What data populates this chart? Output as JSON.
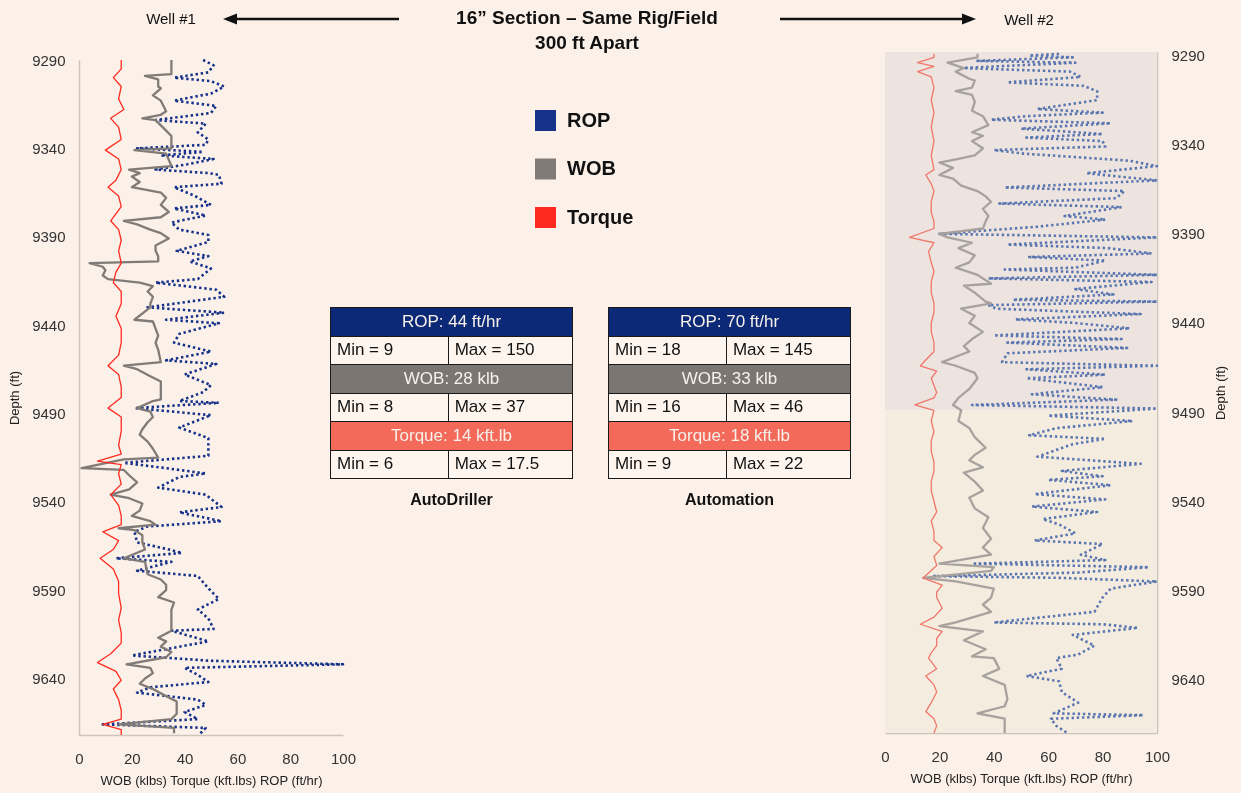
{
  "chart_data": [
    {
      "type": "line",
      "title": "Well #1",
      "xlabel": "WOB (klbs) Torque (kft.lbs) ROP (ft/hr)",
      "ylabel": "Depth (ft)",
      "xlim": [
        0,
        100
      ],
      "xticks": [
        0,
        20,
        40,
        60,
        80,
        100
      ],
      "ylim": [
        9672,
        9290
      ],
      "yticks": [
        9290,
        9340,
        9390,
        9440,
        9490,
        9540,
        9590,
        9640
      ],
      "legend": "right",
      "series": [
        {
          "name": "ROP",
          "color": "#15318a",
          "line_style": "dotted",
          "x": [
            47,
            51,
            49,
            36,
            50,
            55,
            50,
            36,
            52,
            50,
            29,
            48,
            45,
            49,
            48,
            22,
            47,
            31,
            51,
            41,
            29,
            49,
            53,
            54,
            36,
            44,
            50,
            36,
            48,
            35,
            38,
            49,
            49,
            37,
            49,
            42,
            50,
            45,
            29,
            52,
            55,
            26,
            55,
            33,
            53,
            38,
            36,
            50,
            33,
            52,
            40,
            50,
            47,
            38,
            53,
            21,
            50,
            38,
            49,
            49,
            17,
            33,
            48,
            38,
            30,
            48,
            54,
            38,
            54,
            26,
            21,
            22,
            34,
            39,
            14,
            35,
            22,
            45,
            49,
            53,
            45,
            49,
            51,
            35,
            49,
            20,
            50,
            100,
            40,
            45,
            49,
            27,
            22,
            45,
            48,
            40,
            45,
            9,
            48,
            46
          ],
          "values": [
            9290,
            9293,
            9297,
            9300,
            9302,
            9305,
            9309,
            9313,
            9316,
            9320,
            9324,
            9326,
            9331,
            9335,
            9338,
            9340,
            9342,
            9344,
            9346,
            9349,
            9352,
            9354,
            9355,
            9360,
            9362,
            9367,
            9372,
            9374,
            9378,
            9382,
            9386,
            9389,
            9393,
            9398,
            9401,
            9404,
            9408,
            9414,
            9416,
            9420,
            9424,
            9430,
            9433,
            9437,
            9439,
            9445,
            9450,
            9455,
            9460,
            9462,
            9468,
            9474,
            9478,
            9483,
            9484,
            9487,
            9491,
            9498,
            9504,
            9514,
            9518,
            9521,
            9524,
            9526,
            9532,
            9536,
            9543,
            9546,
            9551,
            9554,
            9557,
            9563,
            9567,
            9569,
            9572,
            9574,
            9579,
            9582,
            9589,
            9595,
            9601,
            9606,
            9612,
            9613,
            9619,
            9627,
            9630,
            9632,
            9634,
            9638,
            9642,
            9645,
            9648,
            9652,
            9655,
            9659,
            9663,
            9666,
            9668,
            9671
          ]
        },
        {
          "name": "WOB",
          "color": "#807b76",
          "line_style": "solid",
          "x": [
            35,
            35,
            25,
            30,
            30,
            31,
            28,
            31,
            32,
            33,
            31,
            24,
            29,
            31,
            33,
            35,
            35,
            21,
            33,
            35,
            19,
            23,
            20,
            23,
            20,
            31,
            33,
            31,
            34,
            31,
            17,
            22,
            27,
            31,
            34,
            29,
            29,
            30,
            30,
            4,
            9,
            10,
            9,
            11,
            23,
            28,
            26,
            28,
            27,
            27,
            21,
            28,
            29,
            30,
            29,
            30,
            31,
            17,
            22,
            27,
            31,
            31,
            31,
            28,
            22,
            27,
            28,
            26,
            24,
            23,
            26,
            28,
            30,
            17,
            1,
            17,
            19,
            22,
            19,
            12,
            19,
            24,
            23,
            20,
            27,
            29,
            15,
            21,
            24,
            24,
            25,
            17,
            25,
            26,
            31,
            33,
            33,
            30,
            36,
            35,
            35,
            35,
            35,
            30,
            33,
            31,
            35,
            33,
            18,
            27,
            28,
            25,
            23,
            28,
            33,
            37,
            37,
            37,
            35,
            15,
            36,
            36
          ],
          "values": [
            9290,
            9298,
            9299,
            9301,
            9305,
            9306,
            9310,
            9313,
            9316,
            9319,
            9321,
            9323,
            9324,
            9327,
            9330,
            9333,
            9340,
            9341,
            9343,
            9350,
            9352,
            9354,
            9356,
            9359,
            9362,
            9365,
            9368,
            9372,
            9376,
            9379,
            9381,
            9383,
            9386,
            9388,
            9391,
            9395,
            9398,
            9401,
            9404,
            9405,
            9407,
            9409,
            9412,
            9414,
            9416,
            9418,
            9421,
            9424,
            9428,
            9430,
            9437,
            9438,
            9442,
            9446,
            9450,
            9454,
            9461,
            9463,
            9465,
            9469,
            9472,
            9476,
            9482,
            9483,
            9487,
            9489,
            9492,
            9495,
            9499,
            9502,
            9506,
            9510,
            9515,
            9516,
            9521,
            9522,
            9525,
            9529,
            9533,
            9536,
            9538,
            9541,
            9545,
            9548,
            9551,
            9553,
            9555,
            9556,
            9559,
            9563,
            9567,
            9572,
            9574,
            9581,
            9584,
            9587,
            9590,
            9594,
            9597,
            9601,
            9606,
            9611,
            9613,
            9617,
            9619,
            9622,
            9625,
            9628,
            9632,
            9634,
            9637,
            9640,
            9643,
            9646,
            9650,
            9653,
            9657,
            9660,
            9663,
            9666,
            9668,
            9671
          ]
        },
        {
          "name": "Torque",
          "color": "#ff2a1f",
          "line_style": "solid",
          "x": [
            16,
            16,
            13,
            16,
            15,
            17,
            12,
            15,
            16,
            10,
            15,
            16,
            14,
            11,
            15,
            16,
            12,
            15,
            16,
            15,
            16,
            14,
            13,
            16,
            16,
            14,
            16,
            16,
            15,
            11,
            15,
            16,
            16,
            11,
            16,
            16,
            15,
            16,
            7,
            16,
            15,
            16,
            12,
            15,
            16,
            16,
            9,
            15,
            13,
            8,
            13,
            15,
            15,
            16,
            15,
            16,
            16,
            12,
            7,
            14,
            16,
            13,
            15,
            16,
            16,
            9,
            16,
            16
          ],
          "values": [
            9290,
            9295,
            9300,
            9305,
            9312,
            9318,
            9323,
            9328,
            9335,
            9341,
            9346,
            9352,
            9358,
            9362,
            9367,
            9373,
            9381,
            9386,
            9392,
            9398,
            9405,
            9410,
            9416,
            9421,
            9428,
            9435,
            9442,
            9450,
            9457,
            9463,
            9468,
            9475,
            9481,
            9487,
            9492,
            9500,
            9508,
            9513,
            9517,
            9519,
            9524,
            9530,
            9536,
            9542,
            9548,
            9553,
            9557,
            9562,
            9567,
            9572,
            9578,
            9585,
            9592,
            9600,
            9607,
            9614,
            9620,
            9626,
            9631,
            9636,
            9641,
            9646,
            9652,
            9658,
            9663,
            9666,
            9669,
            9672
          ]
        }
      ]
    },
    {
      "type": "other",
      "title": "16” Section – Same Rig/Field",
      "subtitle": "300 ft Apart",
      "annotations": [
        "ROP: 44 ft/hr",
        "Min = 9",
        "Max = 150",
        "WOB: 28 klb",
        "Min = 8",
        "Max = 37",
        "Torque: 14 kft.lb",
        "Min = 6",
        "Max = 17.5",
        "AutoDriller",
        "ROP: 70 ft/hr",
        "Min = 18",
        "Max = 145",
        "WOB: 33 klb",
        "Min = 16",
        "Max = 46",
        "Torque: 18 kft.lb",
        "Min = 9",
        "Max = 22",
        "Automation"
      ]
    },
    {
      "type": "line",
      "title": "Well #2",
      "xlabel": "WOB (klbs) Torque (kft.lbs) ROP (ft/hr)",
      "y2label": "Depth (ft)",
      "xlim": [
        0,
        100
      ],
      "xticks": [
        0,
        20,
        40,
        60,
        80,
        100
      ],
      "y2lim": [
        9670,
        9288
      ],
      "y2ticks": [
        9290,
        9340,
        9390,
        9440,
        9490,
        9540,
        9590,
        9640
      ],
      "bands": [
        {
          "axis": "y2",
          "from": 9288,
          "to": 9489,
          "color": "#ede4df"
        },
        {
          "axis": "y2",
          "from": 9489,
          "to": 9670,
          "color": "#f5ece0"
        }
      ],
      "series": [
        {
          "color": "#5a76b0",
          "line_style": "dotted",
          "axis": "y2",
          "x": [
            64,
            53,
            69,
            34,
            70,
            28,
            68,
            72,
            45,
            73,
            78,
            78,
            56,
            80,
            52,
            39,
            83,
            50,
            80,
            52,
            80,
            81,
            40,
            51,
            90,
            100,
            74,
            100,
            44,
            88,
            85,
            42,
            87,
            66,
            81,
            56,
            20,
            100,
            45,
            82,
            98,
            53,
            81,
            70,
            44,
            100,
            38,
            98,
            70,
            84,
            47,
            100,
            38,
            41,
            94,
            48,
            70,
            90,
            40,
            87,
            45,
            89,
            45,
            43,
            100,
            52,
            81,
            52,
            80,
            54,
            85,
            32,
            100,
            60,
            91,
            63,
            53,
            81,
            69,
            56,
            94,
            65,
            80,
            60,
            83,
            66,
            55,
            81,
            54,
            78,
            58,
            64,
            70,
            55,
            80,
            72,
            81,
            33,
            97,
            71,
            18,
            65,
            100,
            83,
            80,
            77,
            40,
            80,
            93,
            69,
            77,
            71,
            63,
            65,
            52,
            64,
            65,
            71,
            62,
            95,
            61,
            63,
            67
          ],
          "values": [
            9289,
            9290,
            9291,
            9293,
            9294,
            9297,
            9299,
            9302,
            9305,
            9307,
            9310,
            9315,
            9320,
            9322,
            9324,
            9326,
            9328,
            9331,
            9334,
            9336,
            9338,
            9341,
            9343,
            9345,
            9349,
            9352,
            9356,
            9360,
            9364,
            9366,
            9370,
            9373,
            9375,
            9380,
            9382,
            9386,
            9390,
            9392,
            9396,
            9398,
            9401,
            9403,
            9405,
            9409,
            9410,
            9413,
            9415,
            9417,
            9421,
            9424,
            9427,
            9428,
            9430,
            9432,
            9435,
            9438,
            9440,
            9443,
            9447,
            9449,
            9451,
            9454,
            9457,
            9462,
            9464,
            9466,
            9469,
            9471,
            9476,
            9480,
            9483,
            9486,
            9488,
            9492,
            9495,
            9499,
            9503,
            9505,
            9508,
            9515,
            9519,
            9523,
            9526,
            9528,
            9531,
            9534,
            9536,
            9539,
            9543,
            9546,
            9550,
            9553,
            9558,
            9562,
            9564,
            9570,
            9573,
            9575,
            9577,
            9580,
            9582,
            9583,
            9585,
            9589,
            9594,
            9602,
            9608,
            9609,
            9611,
            9615,
            9621,
            9626,
            9628,
            9634,
            9638,
            9641,
            9647,
            9653,
            9659,
            9660,
            9662,
            9666,
            9670
          ]
        },
        {
          "color": "#a7a29d",
          "line_style": "solid",
          "axis": "y2",
          "x": [
            34,
            34,
            23,
            29,
            26,
            31,
            33,
            32,
            26,
            32,
            33,
            32,
            36,
            38,
            32,
            36,
            32,
            36,
            33,
            27,
            20,
            25,
            20,
            25,
            28,
            34,
            37,
            39,
            36,
            38,
            37,
            36,
            20,
            23,
            32,
            27,
            33,
            31,
            26,
            34,
            39,
            29,
            33,
            37,
            39,
            28,
            33,
            31,
            36,
            32,
            29,
            31,
            21,
            26,
            33,
            34,
            31,
            27,
            25,
            28,
            27,
            31,
            33,
            37,
            33,
            31,
            36,
            29,
            33,
            36,
            31,
            33,
            38,
            36,
            39,
            36,
            39,
            20,
            40,
            39,
            14,
            26,
            40,
            39,
            36,
            39,
            26,
            20,
            36,
            29,
            37,
            32,
            40,
            42,
            36,
            44,
            45,
            44,
            34,
            44,
            44,
            44
          ],
          "values": [
            9289,
            9291,
            9294,
            9297,
            9299,
            9303,
            9304,
            9308,
            9310,
            9312,
            9316,
            9321,
            9324,
            9329,
            9333,
            9335,
            9338,
            9342,
            9346,
            9348,
            9350,
            9353,
            9357,
            9359,
            9363,
            9366,
            9369,
            9372,
            9376,
            9380,
            9383,
            9387,
            9390,
            9392,
            9395,
            9398,
            9402,
            9406,
            9409,
            9413,
            9418,
            9419,
            9423,
            9428,
            9429,
            9432,
            9436,
            9440,
            9445,
            9449,
            9453,
            9456,
            9462,
            9464,
            9468,
            9471,
            9477,
            9482,
            9486,
            9489,
            9495,
            9499,
            9504,
            9510,
            9514,
            9517,
            9521,
            9524,
            9529,
            9534,
            9538,
            9544,
            9549,
            9555,
            9561,
            9566,
            9570,
            9575,
            9577,
            9579,
            9583,
            9585,
            9589,
            9594,
            9598,
            9602,
            9608,
            9610,
            9613,
            9618,
            9623,
            9627,
            9628,
            9634,
            9638,
            9643,
            9651,
            9655,
            9659,
            9662,
            9666,
            9670
          ]
        },
        {
          "color": "#f0776a",
          "line_style": "solid",
          "axis": "y2",
          "x": [
            18,
            18,
            12,
            18,
            12,
            17,
            18,
            17,
            18,
            17,
            18,
            17,
            18,
            15,
            17,
            18,
            17,
            17,
            18,
            18,
            9,
            18,
            16,
            17,
            18,
            17,
            17,
            18,
            18,
            17,
            17,
            18,
            18,
            13,
            19,
            17,
            19,
            18,
            11,
            18,
            17,
            18,
            17,
            17,
            18,
            18,
            17,
            17,
            18,
            19,
            17,
            18,
            18,
            21,
            18,
            19,
            14,
            21,
            19,
            19,
            21,
            18,
            13,
            21,
            19,
            19,
            17,
            16,
            19,
            15,
            18,
            19,
            17,
            15,
            18,
            19,
            18
          ],
          "values": [
            9289,
            9291,
            9294,
            9296,
            9299,
            9302,
            9308,
            9315,
            9322,
            9330,
            9338,
            9346,
            9354,
            9357,
            9362,
            9366,
            9372,
            9378,
            9383,
            9387,
            9392,
            9395,
            9400,
            9406,
            9411,
            9417,
            9423,
            9429,
            9434,
            9440,
            9445,
            9451,
            9456,
            9464,
            9467,
            9471,
            9479,
            9482,
            9486,
            9489,
            9495,
            9501,
            9506,
            9512,
            9518,
            9523,
            9529,
            9534,
            9540,
            9546,
            9551,
            9557,
            9562,
            9566,
            9571,
            9576,
            9583,
            9587,
            9591,
            9594,
            9600,
            9605,
            9609,
            9613,
            9617,
            9621,
            9625,
            9628,
            9634,
            9638,
            9643,
            9647,
            9653,
            9658,
            9662,
            9666,
            9670
          ]
        }
      ]
    }
  ]
}
